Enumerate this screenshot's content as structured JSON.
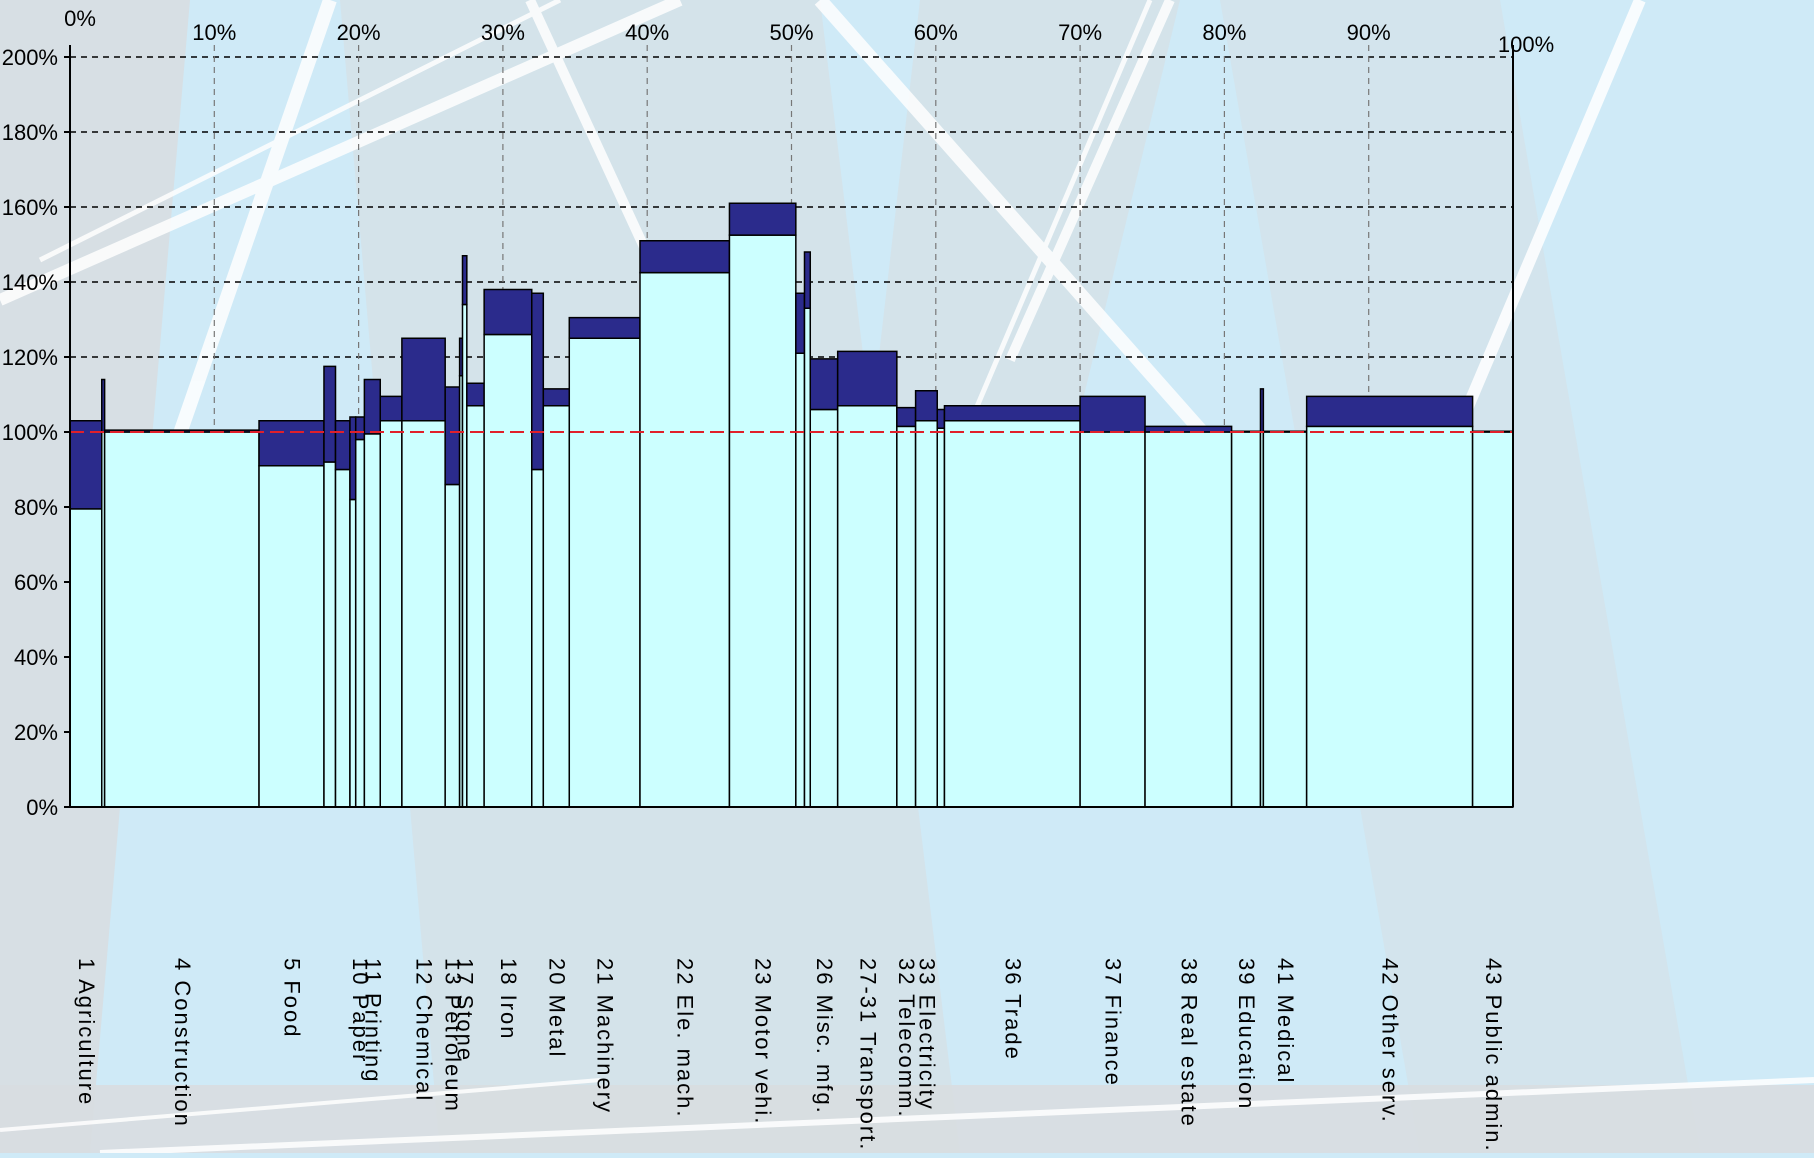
{
  "chart_data": {
    "type": "bar",
    "subtype": "variable-width stacked bar (mekko)",
    "title": "",
    "xlabel": "",
    "ylabel": "",
    "xlim": [
      0,
      100
    ],
    "ylim": [
      0,
      200
    ],
    "y_ticks": [
      0,
      20,
      40,
      60,
      80,
      100,
      120,
      140,
      160,
      180,
      200
    ],
    "y_tick_labels": [
      "0%",
      "20%",
      "40%",
      "60%",
      "80%",
      "100%",
      "120%",
      "140%",
      "160%",
      "180%",
      "200%"
    ],
    "x_ticks": [
      0,
      10,
      20,
      30,
      40,
      50,
      60,
      70,
      80,
      90,
      100
    ],
    "x_tick_labels": [
      "0%",
      "10%",
      "20%",
      "30%",
      "40%",
      "50%",
      "60%",
      "70%",
      "80%",
      "90%",
      "100%"
    ],
    "reference_line": 100,
    "grid": true,
    "legend": "none",
    "colors": {
      "base": "#ccffff",
      "top": "#2b2b8c",
      "outline": "#000000",
      "reference": "#e0202a",
      "gridline": "#000000",
      "vgrid": "#777777",
      "bg_light": "#cfeaf7",
      "bg_gray": "#d8dde0"
    },
    "bars": [
      {
        "label": "1 Agriculture",
        "width": 2.2,
        "lower": 79.5,
        "upper": 103
      },
      {
        "label": "",
        "width": 0.2,
        "lower": 100,
        "upper": 114
      },
      {
        "label": "4 Construction",
        "width": 10.7,
        "lower": 100,
        "upper": 100.5
      },
      {
        "label": "5 Food",
        "width": 4.5,
        "lower": 91,
        "upper": 103
      },
      {
        "label": "",
        "width": 0.8,
        "lower": 92,
        "upper": 117.5
      },
      {
        "label": "",
        "width": 1.0,
        "lower": 90,
        "upper": 103
      },
      {
        "label": "",
        "width": 0.4,
        "lower": 82,
        "upper": 104
      },
      {
        "label": "10 Paper",
        "width": 0.6,
        "lower": 98,
        "upper": 104
      },
      {
        "label": "11 Printing",
        "width": 1.1,
        "lower": 99.5,
        "upper": 114
      },
      {
        "label": "",
        "width": 1.5,
        "lower": 103,
        "upper": 109.5
      },
      {
        "label": "12 Chemical",
        "width": 3.0,
        "lower": 103,
        "upper": 125
      },
      {
        "label": "13 Petroleum",
        "width": 1.0,
        "lower": 86,
        "upper": 112
      },
      {
        "label": "",
        "width": 0.2,
        "lower": 115,
        "upper": 125
      },
      {
        "label": "17 Stone",
        "width": 0.3,
        "lower": 134,
        "upper": 147
      },
      {
        "label": "",
        "width": 1.2,
        "lower": 107,
        "upper": 113
      },
      {
        "label": "18 Iron",
        "width": 3.3,
        "lower": 126,
        "upper": 138
      },
      {
        "label": "",
        "width": 0.8,
        "lower": 90,
        "upper": 137
      },
      {
        "label": "20 Metal",
        "width": 1.8,
        "lower": 107,
        "upper": 111.5
      },
      {
        "label": "21 Machinery",
        "width": 4.9,
        "lower": 125,
        "upper": 130.5
      },
      {
        "label": "22 Ele. mach.",
        "width": 6.2,
        "lower": 142.5,
        "upper": 151
      },
      {
        "label": "23 Motor vehi.",
        "width": 4.6,
        "lower": 152.5,
        "upper": 161
      },
      {
        "label": "",
        "width": 0.6,
        "lower": 121,
        "upper": 137
      },
      {
        "label": "",
        "width": 0.4,
        "lower": 133,
        "upper": 148
      },
      {
        "label": "26 Misc. mfg.",
        "width": 1.9,
        "lower": 106,
        "upper": 119.5
      },
      {
        "label": "27-31 Transport.",
        "width": 4.1,
        "lower": 107,
        "upper": 121.5
      },
      {
        "label": "32 Telecomm.",
        "width": 1.3,
        "lower": 101.5,
        "upper": 106.5
      },
      {
        "label": "33 Electricity",
        "width": 1.5,
        "lower": 103,
        "upper": 111
      },
      {
        "label": "",
        "width": 0.5,
        "lower": 101,
        "upper": 106
      },
      {
        "label": "36 Trade",
        "width": 9.4,
        "lower": 103,
        "upper": 107
      },
      {
        "label": "37 Finance",
        "width": 4.5,
        "lower": 100,
        "upper": 109.5
      },
      {
        "label": "38 Real estate",
        "width": 6.0,
        "lower": 100,
        "upper": 101.5
      },
      {
        "label": "39 Education",
        "width": 2.0,
        "lower": 100,
        "upper": 100.2
      },
      {
        "label": "",
        "width": 0.2,
        "lower": 100,
        "upper": 111.5
      },
      {
        "label": "41 Medical",
        "width": 3.0,
        "lower": 100,
        "upper": 100.2
      },
      {
        "label": "42 Other serv.",
        "width": 11.5,
        "lower": 101.5,
        "upper": 109.5
      },
      {
        "label": "43 Public admin.",
        "width": 2.8,
        "lower": 100,
        "upper": 100.2
      }
    ]
  }
}
